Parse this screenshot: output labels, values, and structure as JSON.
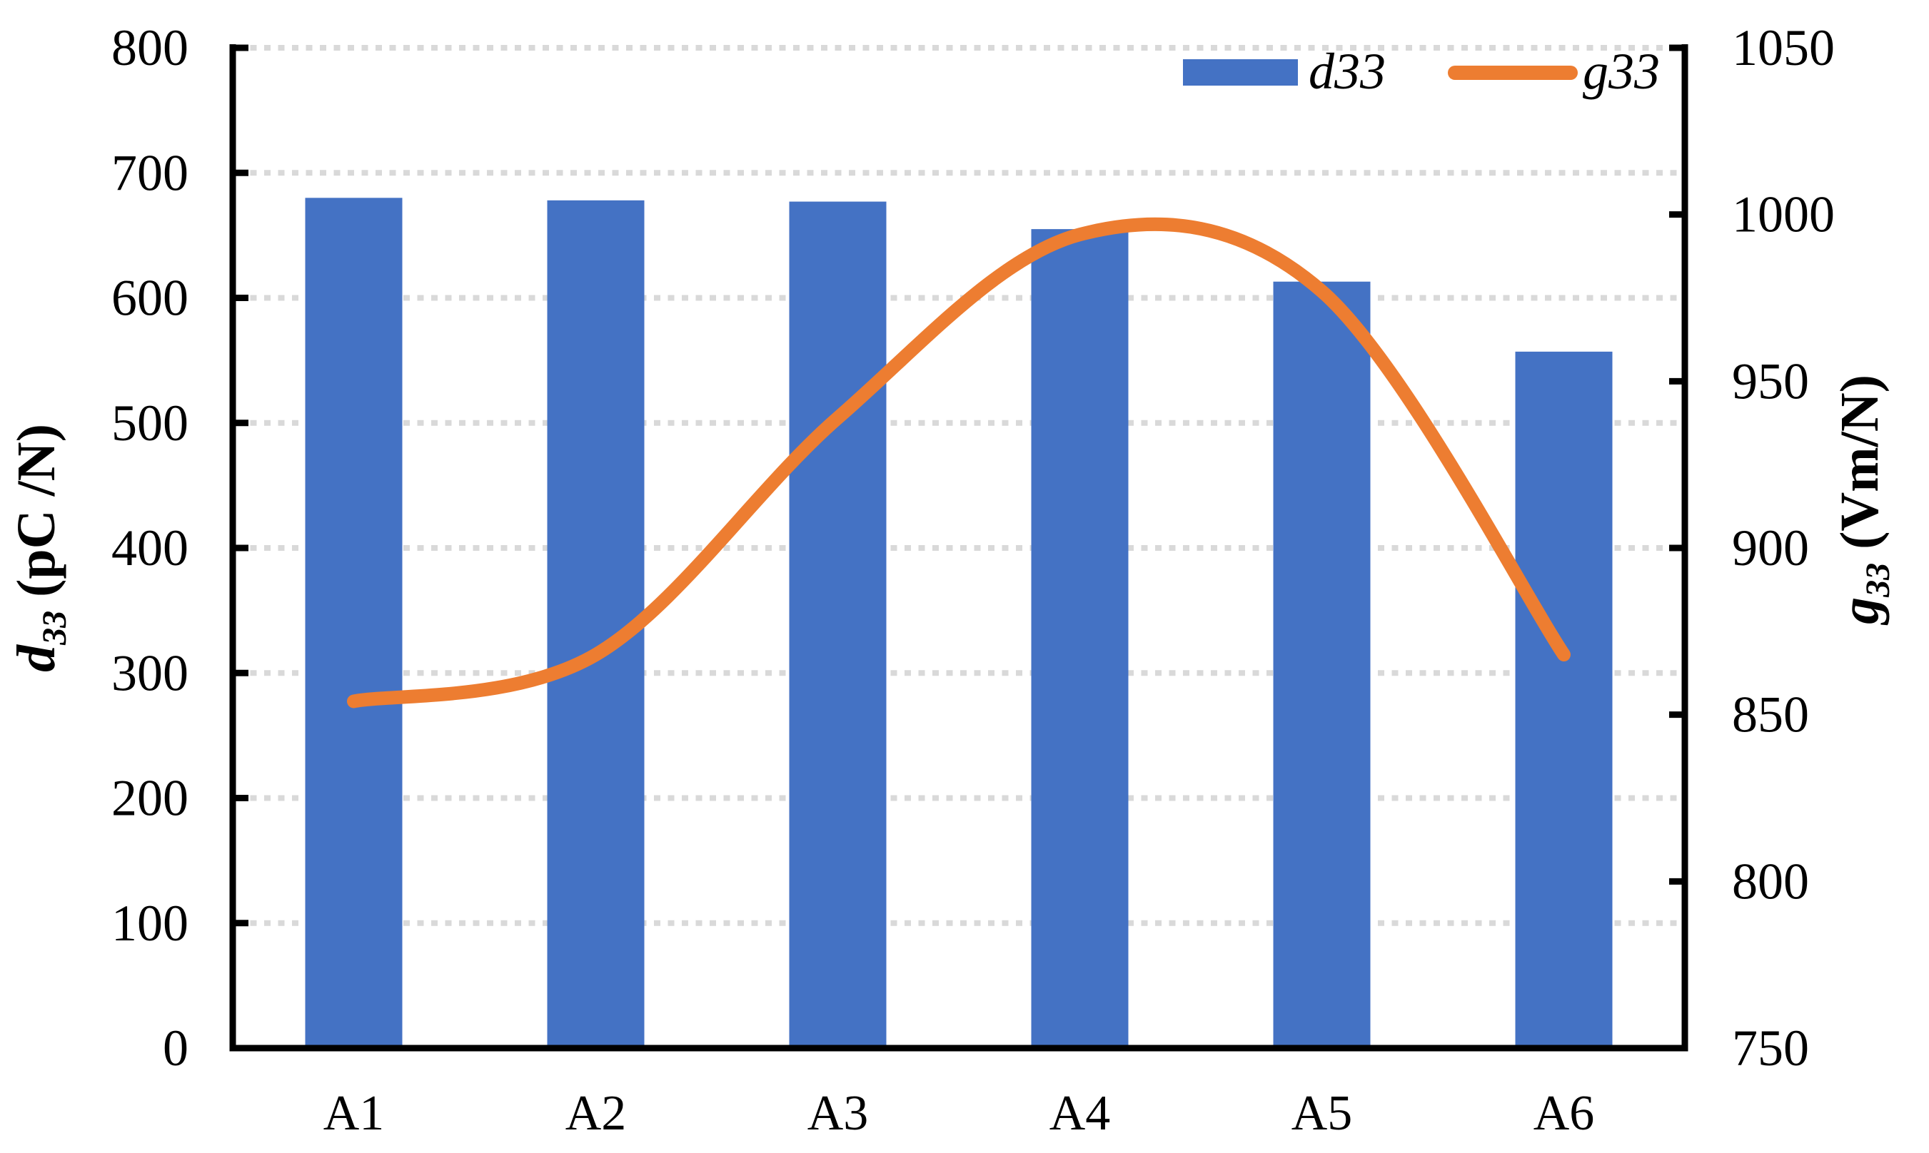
{
  "chart_data": {
    "type": "bar",
    "subtype": "bar-line-combo",
    "categories": [
      "A1",
      "A2",
      "A3",
      "A4",
      "A5",
      "A6"
    ],
    "series": [
      {
        "name": "d33",
        "type": "bar",
        "axis": "left",
        "color": "#4472C4",
        "values": [
          680,
          678,
          677,
          655,
          613,
          557
        ]
      },
      {
        "name": "g33",
        "type": "line",
        "axis": "right",
        "color": "#ED7D31",
        "smooth": true,
        "values": [
          854,
          868,
          939,
          994,
          977,
          868
        ]
      }
    ],
    "left_axis": {
      "title_prefix": "d",
      "title_sub": "33",
      "title_unit": " (pC /N)",
      "min": 0,
      "max": 800,
      "step": 100,
      "tick_labels": [
        "0",
        "100",
        "200",
        "300",
        "400",
        "500",
        "600",
        "700",
        "800"
      ]
    },
    "right_axis": {
      "title_prefix": "g",
      "title_sub": "33",
      "title_unit": " (Vm/N)",
      "min": 750,
      "max": 1050,
      "step": 50,
      "tick_labels": [
        "750",
        "800",
        "850",
        "900",
        "950",
        "1000",
        "1050"
      ]
    },
    "legend": {
      "position": "top-right-inside",
      "entries": [
        {
          "label": "d33",
          "swatch": "bar",
          "color": "#4472C4"
        },
        {
          "label": "g33",
          "swatch": "line",
          "color": "#ED7D31"
        }
      ]
    },
    "grid": {
      "horizontal": true,
      "style": "dashed",
      "color": "#D9D9D9"
    },
    "xlabel": "",
    "ylabel_left": "d33 (pC /N)",
    "ylabel_right": "g33 (Vm/N)"
  },
  "colors": {
    "bar_blue": "#4472C4",
    "line_orange": "#ED7D31",
    "gridline_gray": "#D9D9D9",
    "axis_black": "#000000",
    "background": "#FFFFFF"
  }
}
